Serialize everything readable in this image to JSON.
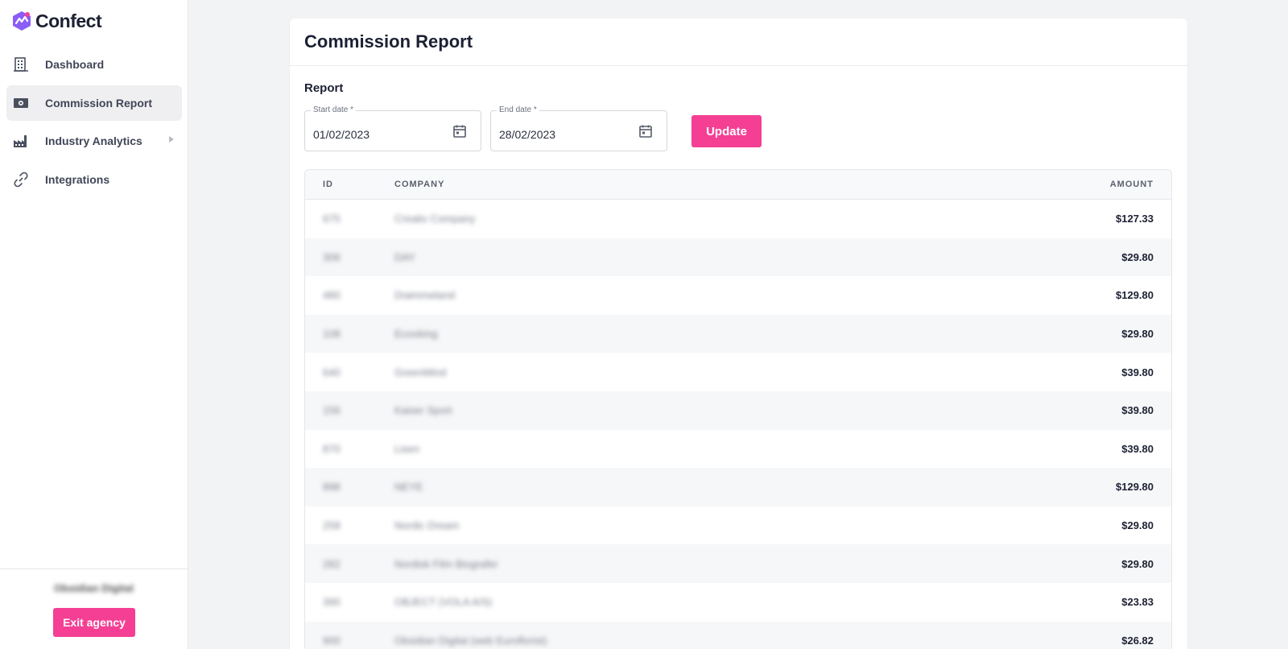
{
  "brand": {
    "name": "Confect",
    "accent": "#f43f94",
    "logo_color": "#8b5cf6"
  },
  "sidebar": {
    "items": [
      {
        "label": "Dashboard",
        "icon": "building-icon",
        "active": false
      },
      {
        "label": "Commission Report",
        "icon": "money-icon",
        "active": true
      },
      {
        "label": "Industry Analytics",
        "icon": "factory-icon",
        "active": false,
        "has_submenu": true
      },
      {
        "label": "Integrations",
        "icon": "link-icon",
        "active": false
      }
    ],
    "footer": {
      "org_name": "Obsidian Digital",
      "exit_label": "Exit agency"
    }
  },
  "page": {
    "title": "Commission Report"
  },
  "report": {
    "section_title": "Report",
    "start_date": {
      "label": "Start date *",
      "value": "01/02/2023"
    },
    "end_date": {
      "label": "End date *",
      "value": "28/02/2023"
    },
    "update_label": "Update"
  },
  "table": {
    "columns": {
      "id": "ID",
      "company": "COMPANY",
      "amount": "AMOUNT"
    },
    "rows": [
      {
        "id": "675",
        "company": "Creativ Company",
        "amount": "$127.33"
      },
      {
        "id": "306",
        "company": "DAY",
        "amount": "$29.80"
      },
      {
        "id": "480",
        "company": "Drømmeland",
        "amount": "$129.80"
      },
      {
        "id": "108",
        "company": "Ecooking",
        "amount": "$29.80"
      },
      {
        "id": "640",
        "company": "GreenMind",
        "amount": "$39.80"
      },
      {
        "id": "156",
        "company": "Kaiser Sport",
        "amount": "$39.80"
      },
      {
        "id": "870",
        "company": "Lisen",
        "amount": "$39.80"
      },
      {
        "id": "898",
        "company": "NEYE",
        "amount": "$129.80"
      },
      {
        "id": "258",
        "company": "Nordic Dream",
        "amount": "$29.80"
      },
      {
        "id": "282",
        "company": "Nordisk Film Biografer",
        "amount": "$29.80"
      },
      {
        "id": "390",
        "company": "OBJECT (VOLA A/S)",
        "amount": "$23.83"
      },
      {
        "id": "900",
        "company": "Obsidian Digital (web Euroflorist)",
        "amount": "$26.82"
      }
    ]
  }
}
